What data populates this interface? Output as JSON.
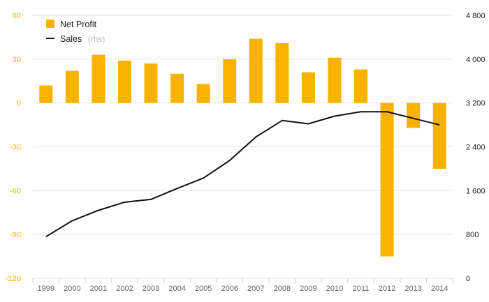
{
  "chart_data": {
    "type": "bar",
    "categories": [
      "1999",
      "2000",
      "2001",
      "2002",
      "2003",
      "2004",
      "2005",
      "2006",
      "2007",
      "2008",
      "2009",
      "2010",
      "2011",
      "2012",
      "2013",
      "2014"
    ],
    "series": [
      {
        "name": "Net Profit",
        "type": "bar",
        "axis": "left",
        "values": [
          12,
          22,
          33,
          29,
          27,
          20,
          13,
          30,
          44,
          41,
          21,
          31,
          23,
          -105,
          -17,
          -45
        ]
      },
      {
        "name": "Sales",
        "type": "line",
        "axis": "right",
        "values": [
          760,
          1050,
          1240,
          1390,
          1440,
          1640,
          1830,
          2150,
          2580,
          2880,
          2820,
          2960,
          3040,
          3040,
          2920,
          2800
        ]
      }
    ],
    "legend": {
      "items": [
        {
          "label": "Net Profit",
          "note": ""
        },
        {
          "label": "Sales",
          "note": "(rhs)"
        }
      ],
      "placement": "top-left"
    },
    "y_left": {
      "ylim": [
        -120,
        60
      ],
      "ticks": [
        60,
        30,
        0,
        -30,
        -60,
        -90,
        -120
      ],
      "tick_labels": [
        "60",
        "30",
        "0",
        "-30",
        "-60",
        "-90",
        "-120"
      ],
      "color": "#f5b400"
    },
    "y_right": {
      "ylim": [
        0,
        4800
      ],
      "ticks": [
        4800,
        4000,
        3200,
        2400,
        1600,
        800,
        0
      ],
      "tick_labels": [
        "4 800",
        "4 000",
        "3 200",
        "2 400",
        "1 600",
        "800",
        "0"
      ]
    },
    "grid": true,
    "colors": {
      "bar": "#f9b200",
      "line": "#111111",
      "grid": "#e6e6e6"
    },
    "title": "",
    "xlabel": "",
    "ylabel": ""
  }
}
